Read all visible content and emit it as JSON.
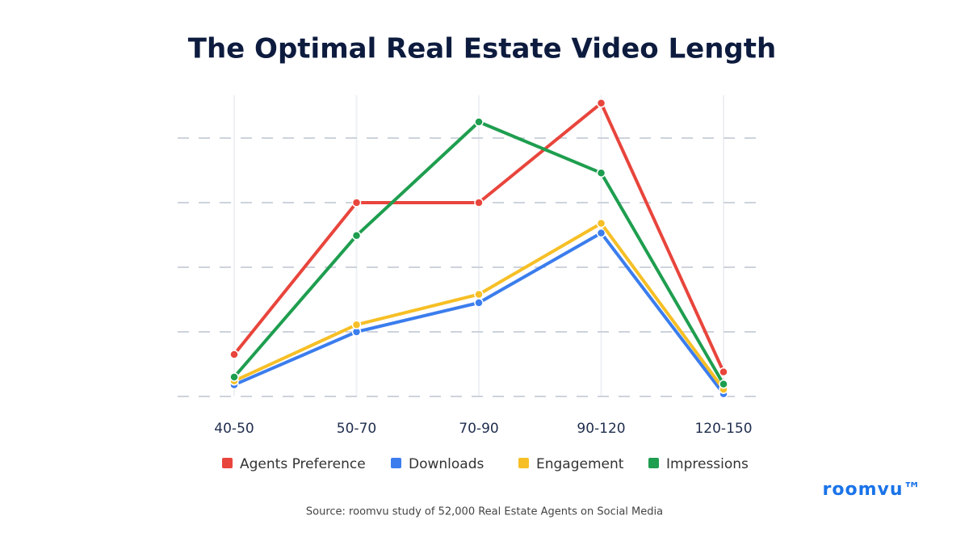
{
  "chart_data": {
    "type": "line",
    "title": "The Optimal Real Estate Video Length",
    "categories": [
      "40-50",
      "50-70",
      "70-90",
      "90-120",
      "120-150"
    ],
    "series": [
      {
        "name": "Agents Preference",
        "color": "#e8453c",
        "values": [
          0.65,
          3.0,
          3.0,
          4.54,
          0.38
        ]
      },
      {
        "name": "Downloads",
        "color": "#3b7ded",
        "values": [
          0.18,
          1.0,
          1.45,
          2.53,
          0.04
        ]
      },
      {
        "name": "Engagement",
        "color": "#f6bf26",
        "values": [
          0.24,
          1.11,
          1.58,
          2.68,
          0.11
        ]
      },
      {
        "name": "Impressions",
        "color": "#1e9e4f",
        "values": [
          0.3,
          2.49,
          4.25,
          3.46,
          0.19
        ]
      }
    ],
    "ylim": [
      0,
      5
    ],
    "yticks": [
      0,
      1,
      2,
      3,
      4
    ],
    "grid": true,
    "source": "Source: roomvu study of 52,000 Real Estate Agents on Social Media",
    "brand": "roomvu™"
  }
}
